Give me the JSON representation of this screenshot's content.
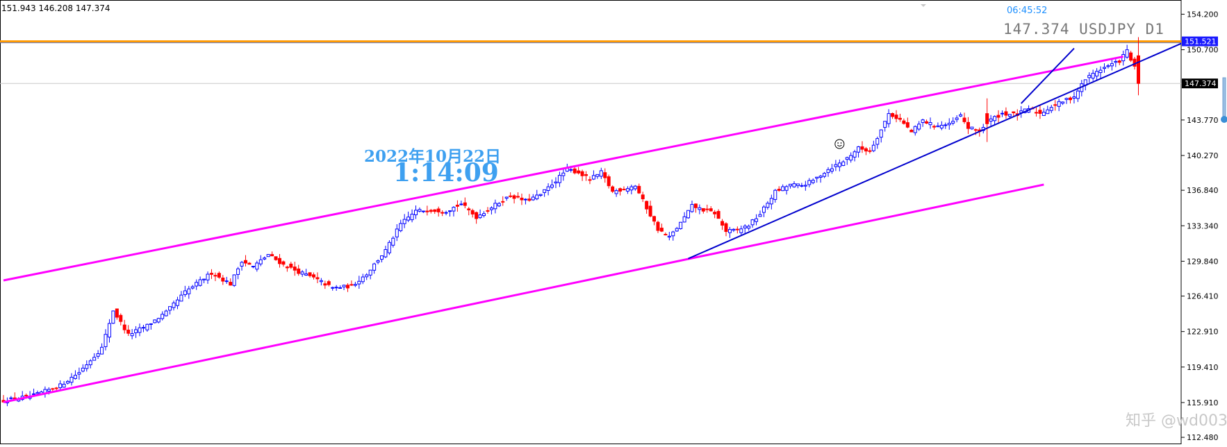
{
  "header": {
    "ohlc_text": "151.943 146.208 147.374"
  },
  "overlay": {
    "clock": "06:45:52",
    "price_symbol": "147.374 USDJPY D1",
    "date_text": "2022年10月22日",
    "time_text": "1:14:09",
    "watermark": "知乎 @wd003"
  },
  "colors": {
    "bull": "#0000ff",
    "bear": "#ff0000",
    "channel": "#ff00ff",
    "trend": "#0000cd",
    "level": "#ff9900",
    "axis": "#000000",
    "price_tag_bg": "#1a1aff"
  },
  "chart_data": {
    "type": "candlestick",
    "symbol": "USDJPY",
    "timeframe": "D1",
    "y_ticks": [
      "154.200",
      "150.700",
      "147.374",
      "143.770",
      "140.270",
      "136.840",
      "133.340",
      "129.840",
      "126.410",
      "122.910",
      "119.410",
      "115.910",
      "112.480"
    ],
    "ylim": [
      111.8,
      155.6
    ],
    "current_price": "147.374",
    "level_price": "151.521",
    "anchors": [
      [
        0,
        116.1
      ],
      [
        8,
        116.6
      ],
      [
        15,
        117.6
      ],
      [
        20,
        118.9
      ],
      [
        26,
        121.3
      ],
      [
        29,
        125.0
      ],
      [
        33,
        122.6
      ],
      [
        38,
        123.5
      ],
      [
        43,
        124.8
      ],
      [
        48,
        126.8
      ],
      [
        55,
        128.7
      ],
      [
        60,
        127.6
      ],
      [
        63,
        129.9
      ],
      [
        66,
        129.3
      ],
      [
        70,
        130.5
      ],
      [
        74,
        129.5
      ],
      [
        78,
        128.8
      ],
      [
        82,
        128.2
      ],
      [
        87,
        127.2
      ],
      [
        92,
        127.4
      ],
      [
        96,
        128.6
      ],
      [
        101,
        130.9
      ],
      [
        105,
        133.5
      ],
      [
        109,
        134.8
      ],
      [
        113,
        134.9
      ],
      [
        117,
        134.8
      ],
      [
        121,
        135.5
      ],
      [
        125,
        134.2
      ],
      [
        130,
        135.4
      ],
      [
        134,
        136.3
      ],
      [
        138,
        135.8
      ],
      [
        142,
        136.4
      ],
      [
        146,
        137.8
      ],
      [
        149,
        138.9
      ],
      [
        152,
        138.6
      ],
      [
        155,
        137.9
      ],
      [
        158,
        138.6
      ],
      [
        161,
        136.7
      ],
      [
        164,
        137.0
      ],
      [
        167,
        137.3
      ],
      [
        170,
        135.1
      ],
      [
        173,
        133.0
      ],
      [
        176,
        132.2
      ],
      [
        179,
        133.6
      ],
      [
        182,
        135.3
      ],
      [
        185,
        134.9
      ],
      [
        188,
        134.6
      ],
      [
        191,
        132.8
      ],
      [
        194,
        132.9
      ],
      [
        197,
        133.4
      ],
      [
        200,
        134.5
      ],
      [
        204,
        136.7
      ],
      [
        208,
        137.4
      ],
      [
        211,
        137.3
      ],
      [
        214,
        137.8
      ],
      [
        218,
        138.9
      ],
      [
        222,
        139.7
      ],
      [
        226,
        141.0
      ],
      [
        229,
        140.7
      ],
      [
        232,
        142.8
      ],
      [
        234,
        144.4
      ],
      [
        237,
        143.8
      ],
      [
        240,
        142.6
      ],
      [
        243,
        143.7
      ],
      [
        246,
        143.2
      ],
      [
        250,
        143.3
      ],
      [
        253,
        144.2
      ],
      [
        255,
        143.0
      ],
      [
        258,
        142.7
      ],
      [
        261,
        143.8
      ],
      [
        264,
        144.4
      ],
      [
        268,
        144.3
      ],
      [
        271,
        144.9
      ],
      [
        274,
        144.4
      ],
      [
        277,
        145.1
      ],
      [
        280,
        145.6
      ],
      [
        283,
        146.1
      ],
      [
        286,
        147.8
      ],
      [
        289,
        148.6
      ],
      [
        292,
        149.1
      ],
      [
        295,
        149.6
      ],
      [
        297,
        150.6
      ],
      [
        299,
        148.9
      ],
      [
        300,
        147.374
      ]
    ],
    "highlighted_bars": [
      {
        "x": 260,
        "low": 141.6,
        "high": 145.9,
        "open": 144.4,
        "close": 143.4
      },
      {
        "x": 300,
        "low": 146.21,
        "high": 151.94,
        "open": 150.1,
        "close": 147.374
      }
    ],
    "channel_lines": [
      {
        "x0": 0,
        "y0": 127.95,
        "x1": 296,
        "y1": 150.02
      },
      {
        "x0": 0,
        "y0": 115.94,
        "x1": 275,
        "y1": 137.4
      }
    ],
    "trend_lines": [
      {
        "x0": 181,
        "y0": 130.1,
        "x1": 300,
        "y1": 149.47
      },
      {
        "x0": 269,
        "y0": 145.4,
        "x1": 283,
        "y1": 150.83
      }
    ]
  }
}
